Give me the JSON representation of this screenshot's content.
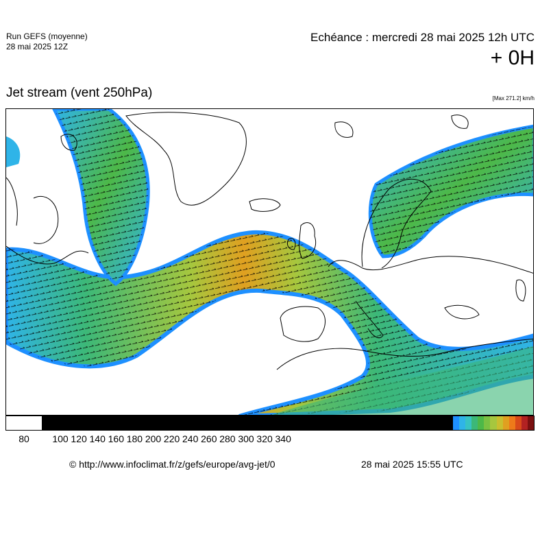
{
  "header": {
    "run_label": "Run GEFS (moyenne)",
    "run_date": "28 mai 2025 12Z",
    "valid_time": "Echéance : mercredi 28 mai 2025 12h UTC",
    "lead_time": "+ 0H"
  },
  "map": {
    "title": "Jet stream (vent 250hPa)",
    "max_label": "[Max 271.2] km/h",
    "ocean_color": "#ffffff",
    "coast_color": "#000000"
  },
  "colorbar": {
    "unit": "km/h",
    "ticks": [
      "80",
      "100",
      "120",
      "140",
      "160",
      "180",
      "200",
      "220",
      "240",
      "260",
      "280",
      "300",
      "320",
      "340"
    ],
    "colors": [
      "#ffffff",
      "#ffffff",
      "#000000",
      "#1e90ff",
      "#2fb4e8",
      "#37c3c3",
      "#3cb878",
      "#4db848",
      "#7ac142",
      "#a6c73e",
      "#c9bf2f",
      "#e0a020",
      "#ee7a1a",
      "#d94a1a",
      "#b22222",
      "#7a1010"
    ]
  },
  "footer": {
    "credit": "© http://www.infoclimat.fr/z/gefs/europe/avg-jet/0",
    "generated": "28 mai 2025 15:55 UTC"
  }
}
